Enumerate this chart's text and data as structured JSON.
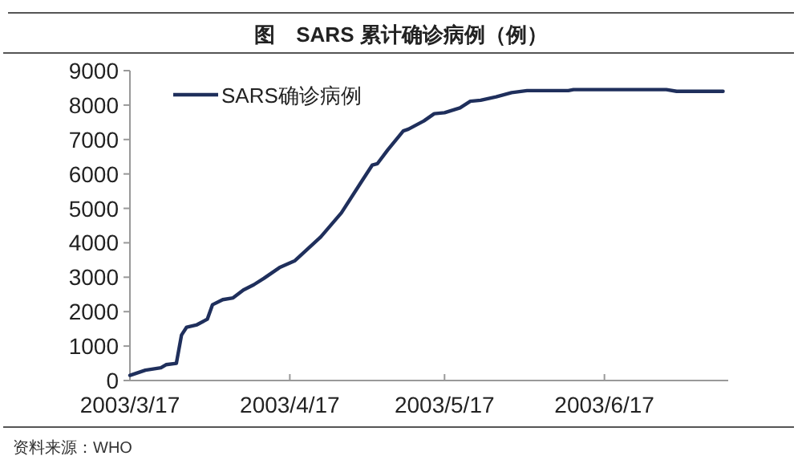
{
  "chart_data": {
    "type": "line",
    "title": "图　SARS 累计确诊病例（例）",
    "annotations": [
      "资料来源：WHO"
    ],
    "xlim": [
      "2003-03-17",
      "2003-07-11"
    ],
    "xticks": [
      {
        "value": "2003-03-17",
        "label": "2003/3/17"
      },
      {
        "value": "2003-04-17",
        "label": "2003/4/17"
      },
      {
        "value": "2003-05-17",
        "label": "2003/5/17"
      },
      {
        "value": "2003-06-17",
        "label": "2003/6/17"
      }
    ],
    "ylim": [
      0,
      9000
    ],
    "yticks": [
      0,
      1000,
      2000,
      3000,
      4000,
      5000,
      6000,
      7000,
      8000,
      9000
    ],
    "grid": false,
    "legend": "top left",
    "marker": "none",
    "line_style": "solid",
    "series": [
      {
        "name": "SARS确诊病例",
        "color": "#1f2f5c",
        "x": [
          "2003-03-17",
          "2003-03-20",
          "2003-03-23",
          "2003-03-24",
          "2003-03-26",
          "2003-03-27",
          "2003-03-28",
          "2003-03-30",
          "2003-04-01",
          "2003-04-02",
          "2003-04-04",
          "2003-04-06",
          "2003-04-08",
          "2003-04-10",
          "2003-04-12",
          "2003-04-15",
          "2003-04-18",
          "2003-04-23",
          "2003-04-27",
          "2003-05-01",
          "2003-05-03",
          "2003-05-04",
          "2003-05-06",
          "2003-05-09",
          "2003-05-10",
          "2003-05-13",
          "2003-05-15",
          "2003-05-17",
          "2003-05-20",
          "2003-05-22",
          "2003-05-24",
          "2003-05-27",
          "2003-05-30",
          "2003-06-02",
          "2003-06-10",
          "2003-06-11",
          "2003-06-29",
          "2003-07-01",
          "2003-07-10"
        ],
        "values": [
          150,
          300,
          370,
          460,
          500,
          1320,
          1550,
          1620,
          1780,
          2200,
          2350,
          2400,
          2630,
          2780,
          2970,
          3280,
          3480,
          4170,
          4870,
          5800,
          6260,
          6300,
          6700,
          7250,
          7300,
          7540,
          7750,
          7780,
          7920,
          8110,
          8140,
          8240,
          8360,
          8420,
          8420,
          8450,
          8450,
          8400,
          8400
        ]
      }
    ]
  }
}
